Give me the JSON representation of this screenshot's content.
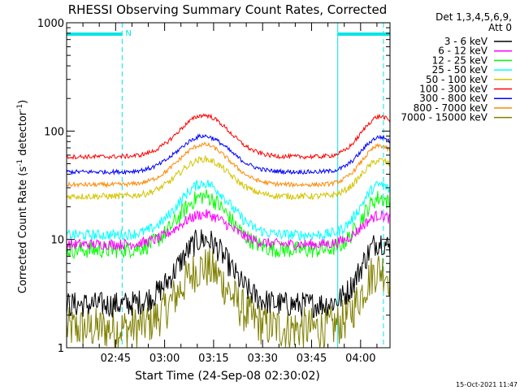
{
  "chart_data": {
    "type": "line",
    "title": "RHESSI Observing Summary Count Rates, Corrected",
    "xlabel": "Start Time (24-Sep-08 02:30:02)",
    "ylabel_main": "Corrected Count Rate (s",
    "ylabel_sup1": "-1",
    "ylabel_mid": " detector",
    "ylabel_sup2": "-1",
    "ylabel_end": ")",
    "yscale": "log",
    "ylim": [
      1,
      1000
    ],
    "ytick_values": [
      1,
      10,
      100,
      1000
    ],
    "ytick_labels": [
      "1",
      "10",
      "100",
      "1000"
    ],
    "xlim_minutes": [
      0,
      99
    ],
    "xtick_minutes": [
      15,
      30,
      45,
      60,
      75,
      90
    ],
    "xtick_labels": [
      "02:45",
      "03:00",
      "03:15",
      "03:30",
      "03:45",
      "04:00"
    ],
    "legend_header": [
      "Det 1,3,4,5,6,9,",
      "Att 0"
    ],
    "legend_position": "right",
    "night_marker_label": "N",
    "night_bar_spans_minutes": [
      [
        0,
        17
      ],
      [
        83,
        99
      ]
    ],
    "night_dashed_minutes": [
      17,
      97
    ],
    "night_solid_minutes": [
      0,
      83
    ],
    "series": [
      {
        "name": "3 - 6 keV",
        "color": "#000000",
        "base": 2.5,
        "peak": 10,
        "noise": 0.12
      },
      {
        "name": "6 - 12 keV",
        "color": "#ff00ff",
        "base": 9,
        "peak": 17,
        "noise": 0.05
      },
      {
        "name": "12 - 25 keV",
        "color": "#00ff00",
        "base": 8,
        "peak": 25,
        "noise": 0.08
      },
      {
        "name": "25 - 50 keV",
        "color": "#00ffff",
        "base": 11,
        "peak": 33,
        "noise": 0.05
      },
      {
        "name": "50 - 100 keV",
        "color": "#d4c400",
        "base": 25,
        "peak": 55,
        "noise": 0.03
      },
      {
        "name": "100 - 300 keV",
        "color": "#ff0000",
        "base": 58,
        "peak": 140,
        "noise": 0.02
      },
      {
        "name": "300 - 800 keV",
        "color": "#0000ff",
        "base": 42,
        "peak": 90,
        "noise": 0.02
      },
      {
        "name": "800 - 7000 keV",
        "color": "#ff8800",
        "base": 32,
        "peak": 75,
        "noise": 0.02
      },
      {
        "name": "7000 - 15000 keV",
        "color": "#808000",
        "base": 1.5,
        "peak": 5.5,
        "noise": 0.2
      }
    ]
  },
  "footer_timestamp": "15-Oct-2021 11:47"
}
